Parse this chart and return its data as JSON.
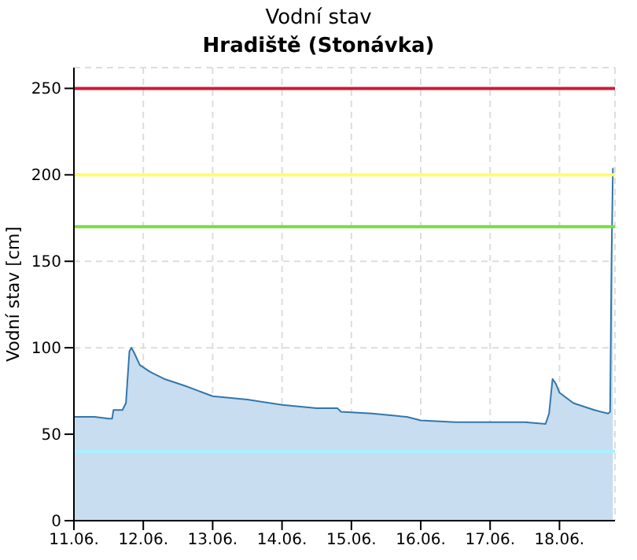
{
  "chart_data": {
    "type": "area",
    "title": "Vodní stav",
    "subtitle": "Hradiště (Stonávka)",
    "ylabel": "Vodní stav [cm]",
    "x": [
      "--06-11T00:00",
      "--06-11T07:12",
      "--06-11T12:00",
      "--06-11T13:12",
      "--06-11T13:41",
      "--06-11T16:48",
      "--06-11T18:00",
      "--06-11T19:12",
      "--06-11T19:55",
      "--06-11T20:53",
      "--06-11T22:48",
      "--06-12T02:24",
      "--06-12T07:12",
      "--06-12T14:24",
      "--06-12T19:12",
      "--06-13T00:00",
      "--06-13T12:00",
      "--06-14T00:00",
      "--06-14T12:00",
      "--06-14T19:12",
      "--06-14T20:24",
      "--06-15T07:12",
      "--06-15T19:12",
      "--06-16T00:00",
      "--06-16T12:00",
      "--06-17T00:00",
      "--06-17T12:00",
      "--06-17T19:12",
      "--06-17T20:24",
      "--06-17T21:36",
      "--06-17T22:48",
      "--06-18T00:00",
      "--06-18T04:48",
      "--06-18T12:00",
      "--06-18T16:48",
      "--06-18T17:31",
      "--06-18T18:00",
      "--06-18T18:29"
    ],
    "series": [
      {
        "color": "#3377aa",
        "values": [
          60,
          60,
          59,
          59,
          64,
          64,
          68,
          98,
          100,
          97,
          90,
          86,
          82,
          78,
          75,
          72,
          70,
          67,
          65,
          65,
          63,
          62,
          60,
          58,
          57,
          57,
          57,
          56,
          62,
          82,
          79,
          74,
          68,
          64,
          62,
          63,
          150,
          204
        ]
      }
    ],
    "xlim": [
      "--06-11T00:00",
      "--06-18T19:12"
    ],
    "xticks": [
      {
        "value": "--06-11",
        "label": "11.06."
      },
      {
        "value": "--06-12",
        "label": "12.06."
      },
      {
        "value": "--06-13",
        "label": "13.06."
      },
      {
        "value": "--06-14",
        "label": "14.06."
      },
      {
        "value": "--06-15",
        "label": "15.06."
      },
      {
        "value": "--06-16",
        "label": "16.06."
      },
      {
        "value": "--06-17",
        "label": "17.06."
      },
      {
        "value": "--06-18",
        "label": "18.06."
      }
    ],
    "ylim": [
      0,
      262
    ],
    "yticks": [
      0,
      50,
      100,
      150,
      200,
      250
    ],
    "ref_lines": [
      {
        "axis": "y",
        "value": 250,
        "color": "#cc1a3a"
      },
      {
        "axis": "y",
        "value": 200,
        "color": "#ffff66"
      },
      {
        "axis": "y",
        "value": 170,
        "color": "#77dd44"
      },
      {
        "axis": "y",
        "value": 40,
        "color": "#aaf0ff"
      }
    ],
    "grid": true,
    "line_style": "solid",
    "marker": "none"
  }
}
